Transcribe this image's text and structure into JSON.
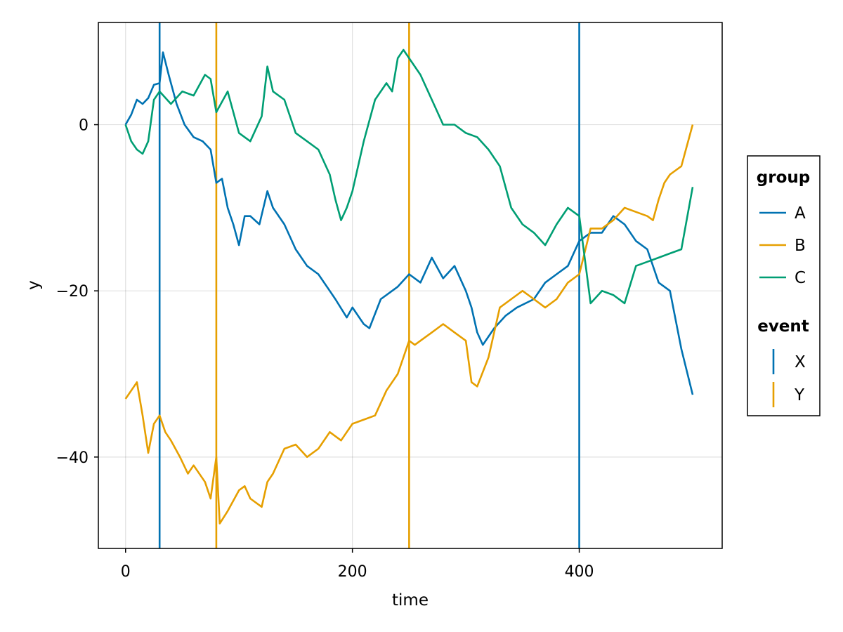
{
  "chart_data": {
    "type": "line",
    "xlabel": "time",
    "ylabel": "y",
    "xlim": [
      -24,
      526
    ],
    "ylim": [
      -51,
      12.3
    ],
    "xticks": [
      0,
      200,
      400
    ],
    "yticks": [
      0,
      -20,
      -40
    ],
    "xtick_labels": [
      "0",
      "200",
      "400"
    ],
    "ytick_labels": [
      "0",
      "−20",
      "−40"
    ],
    "grid": true,
    "legend_position": "right",
    "series": [
      {
        "name": "A",
        "color": "#0072b2",
        "x": [
          0,
          5,
          10,
          15,
          20,
          25,
          30,
          33,
          38,
          45,
          52,
          60,
          68,
          75,
          80,
          85,
          90,
          95,
          100,
          105,
          110,
          118,
          125,
          130,
          140,
          150,
          160,
          170,
          180,
          185,
          195,
          200,
          210,
          215,
          225,
          235,
          240,
          250,
          260,
          270,
          280,
          290,
          300,
          305,
          310,
          315,
          325,
          335,
          345,
          360,
          370,
          380,
          390,
          400,
          410,
          420,
          430,
          440,
          450,
          460,
          465,
          470,
          480,
          490,
          500
        ],
        "y": [
          0,
          1.2,
          3,
          2.5,
          3.2,
          4.8,
          5,
          8.7,
          6,
          2.5,
          0,
          -1.5,
          -2,
          -3,
          -7,
          -6.5,
          -10,
          -12,
          -14.5,
          -11,
          -11,
          -12,
          -8,
          -10,
          -12,
          -15,
          -17,
          -18,
          -20,
          -21,
          -23.2,
          -22,
          -24,
          -24.5,
          -21,
          -20,
          -19.5,
          -18,
          -19,
          -16,
          -18.5,
          -17,
          -20,
          -22,
          -25,
          -26.5,
          -24.5,
          -23,
          -22,
          -21,
          -19,
          -18,
          -17,
          -14,
          -13,
          -13,
          -11,
          -12,
          -14,
          -15,
          -17,
          -19,
          -20,
          -27,
          -32.5
        ]
      },
      {
        "name": "B",
        "color": "#e69f00",
        "x": [
          0,
          5,
          10,
          15,
          20,
          25,
          30,
          35,
          40,
          48,
          55,
          60,
          70,
          75,
          80,
          83,
          90,
          100,
          105,
          110,
          120,
          125,
          130,
          140,
          150,
          160,
          170,
          180,
          190,
          200,
          210,
          220,
          230,
          240,
          250,
          255,
          260,
          270,
          280,
          285,
          290,
          300,
          305,
          310,
          320,
          330,
          340,
          350,
          360,
          370,
          380,
          390,
          400,
          410,
          420,
          430,
          440,
          450,
          460,
          465,
          470,
          475,
          480,
          490,
          500
        ],
        "y": [
          -33,
          -32,
          -31,
          -35,
          -39.5,
          -36,
          -35,
          -37,
          -38,
          -40,
          -42,
          -41,
          -43,
          -45,
          -40,
          -48,
          -46.5,
          -44,
          -43.5,
          -45,
          -46,
          -43,
          -42,
          -39,
          -38.5,
          -40,
          -39,
          -37,
          -38,
          -36,
          -35.5,
          -35,
          -32,
          -30,
          -26,
          -26.5,
          -26,
          -25,
          -24,
          -24.5,
          -25,
          -26,
          -31,
          -31.5,
          -28,
          -22,
          -21,
          -20,
          -21,
          -22,
          -21,
          -19,
          -18,
          -12.5,
          -12.5,
          -11.5,
          -10,
          -10.5,
          -11,
          -11.5,
          -9,
          -7,
          -6,
          -5,
          0
        ]
      },
      {
        "name": "C",
        "color": "#009e73",
        "x": [
          0,
          5,
          10,
          15,
          20,
          25,
          30,
          40,
          50,
          60,
          70,
          75,
          80,
          90,
          100,
          110,
          120,
          125,
          130,
          140,
          150,
          160,
          170,
          180,
          185,
          190,
          195,
          200,
          210,
          220,
          230,
          235,
          240,
          245,
          250,
          260,
          270,
          280,
          290,
          300,
          310,
          320,
          330,
          340,
          350,
          360,
          370,
          380,
          390,
          400,
          410,
          420,
          430,
          440,
          450,
          460,
          470,
          480,
          490,
          500
        ],
        "y": [
          0,
          -2,
          -3,
          -3.5,
          -2,
          3,
          4,
          2.5,
          4,
          3.5,
          6,
          5.5,
          1.5,
          4,
          -1,
          -2,
          1,
          7,
          4,
          3,
          -1,
          -2,
          -3,
          -6,
          -9,
          -11.5,
          -10,
          -8,
          -2,
          3,
          5,
          4,
          8,
          9,
          8,
          6,
          3,
          0,
          0,
          -1,
          -1.5,
          -3,
          -5,
          -10,
          -12,
          -13,
          -14.5,
          -12,
          -10,
          -11,
          -21.5,
          -20,
          -20.5,
          -21.5,
          -17,
          -16.5,
          -16,
          -15.5,
          -15,
          -7.5
        ]
      }
    ],
    "events": [
      {
        "name": "X",
        "color": "#0072b2",
        "x": [
          30,
          400
        ]
      },
      {
        "name": "Y",
        "color": "#e69f00",
        "x": [
          80,
          250
        ]
      }
    ],
    "legend": {
      "group_title": "group",
      "group_items": [
        "A",
        "B",
        "C"
      ],
      "event_title": "event",
      "event_items": [
        "X",
        "Y"
      ]
    }
  }
}
